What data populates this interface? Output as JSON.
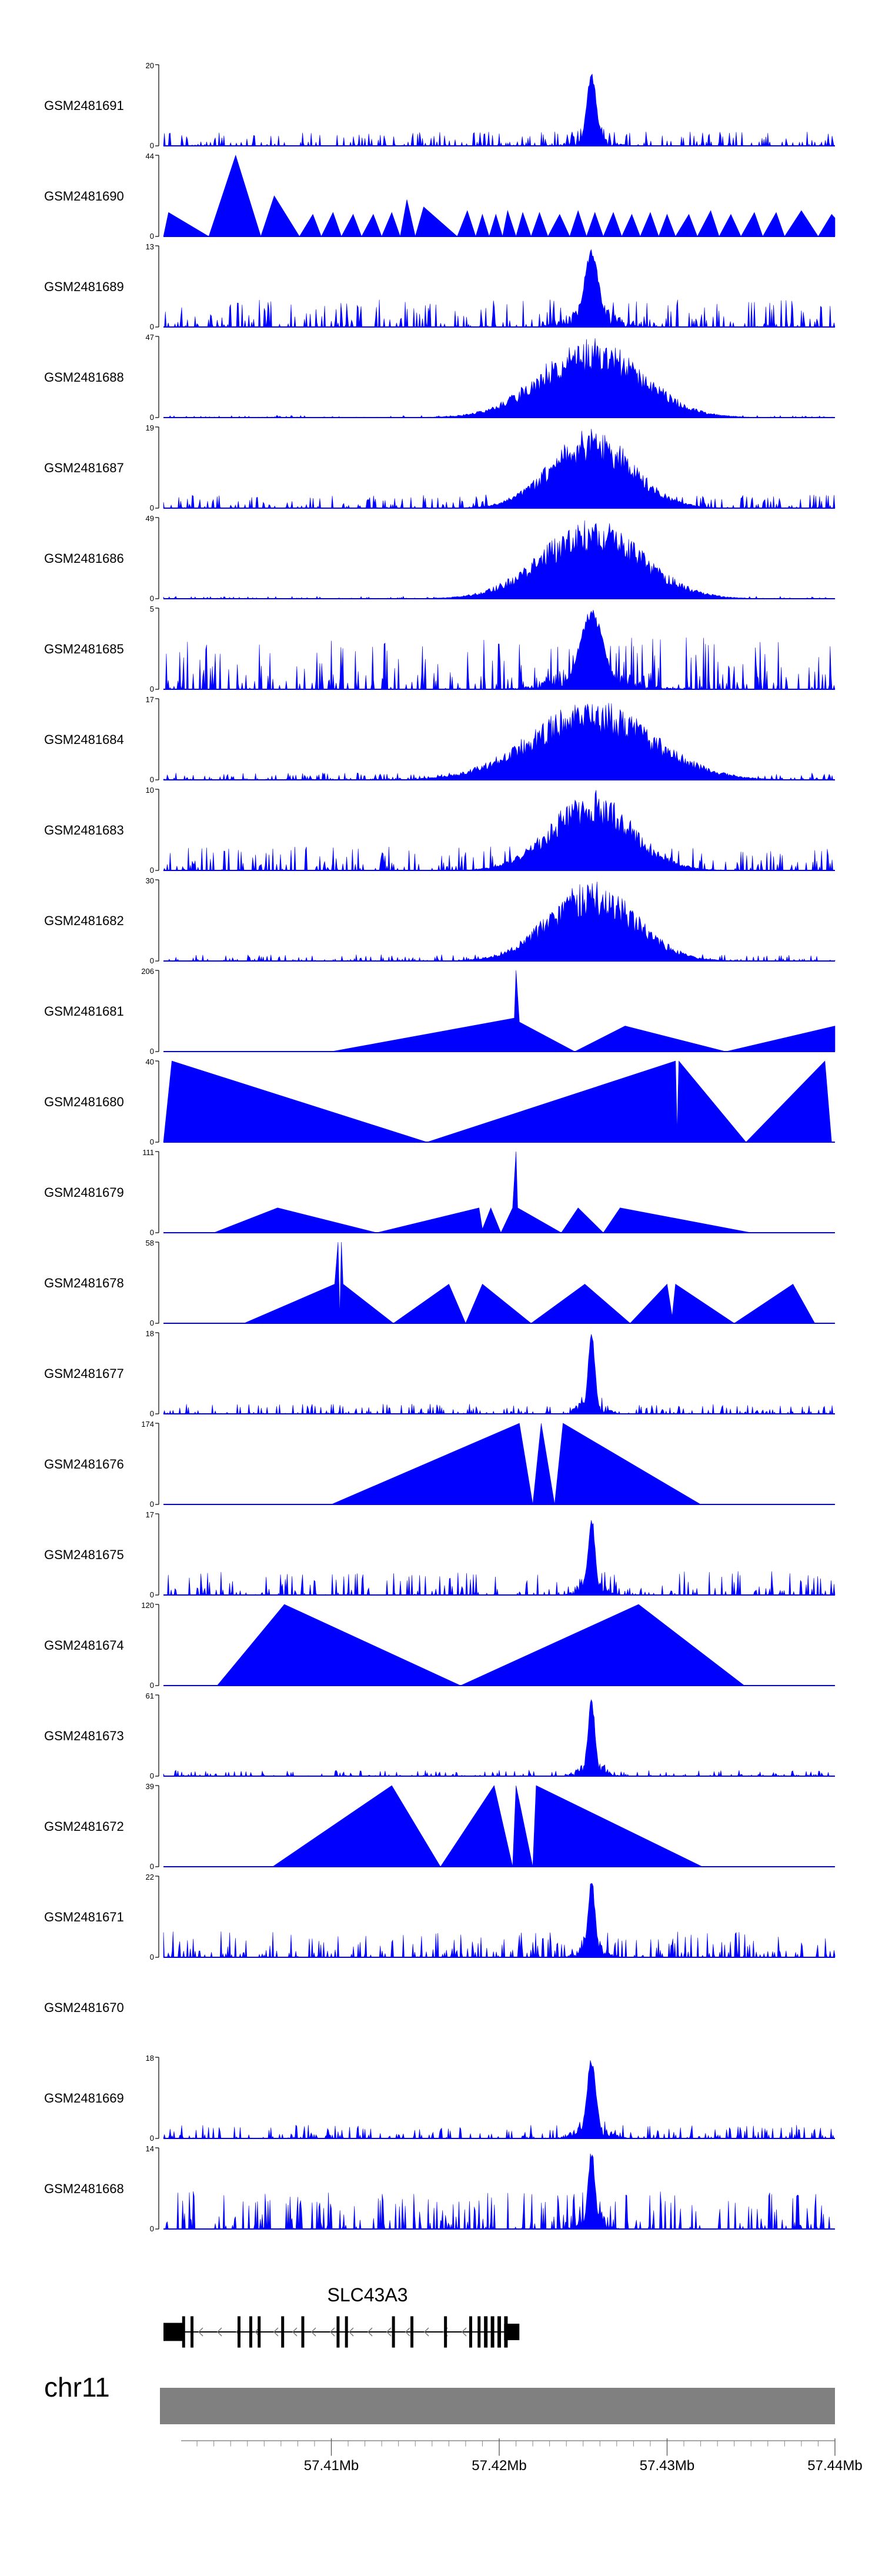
{
  "chart_data": {
    "type": "area",
    "color": "#0000ff",
    "axis_color": "#000000",
    "ideogram_color": "#808080",
    "xlim": [
      57.4,
      57.44
    ],
    "tick_labels": [
      "57.41Mb",
      "57.42Mb",
      "57.43Mb",
      "57.44Mb"
    ],
    "tick_values": [
      57.41,
      57.42,
      57.43,
      57.44
    ],
    "peak_center": 57.4255,
    "chromosome": "chr11",
    "gene": {
      "name": "SLC43A3",
      "start": 57.4,
      "end": 57.4205,
      "strand": "-",
      "exons": [
        57.4,
        57.4012,
        57.4017,
        57.4045,
        57.4052,
        57.4057,
        57.4071,
        57.4083,
        57.4104,
        57.4109,
        57.4137,
        57.4148,
        57.4168,
        57.4183,
        57.4188,
        57.4192,
        57.4196,
        57.42,
        57.4204
      ]
    },
    "tracks": [
      {
        "name": "GSM2481691",
        "ymax": 20,
        "ymin": 0,
        "style": "peak",
        "peak_height": 19,
        "peak_width": 0.0008,
        "noise": 3.5
      },
      {
        "name": "GSM2481690",
        "ymax": 44,
        "ymin": 0,
        "style": "triangles",
        "points": [
          [
            57.4,
            0
          ],
          [
            57.4003,
            13
          ],
          [
            57.4027,
            0
          ],
          [
            57.4043,
            44
          ],
          [
            57.4058,
            0
          ],
          [
            57.4066,
            22
          ],
          [
            57.4081,
            0
          ],
          [
            57.4089,
            12
          ],
          [
            57.4094,
            0
          ],
          [
            57.4101,
            13
          ],
          [
            57.4106,
            0
          ],
          [
            57.4113,
            12
          ],
          [
            57.4118,
            0
          ],
          [
            57.4125,
            12
          ],
          [
            57.413,
            0
          ],
          [
            57.4136,
            13
          ],
          [
            57.4141,
            0
          ],
          [
            57.4145,
            20
          ],
          [
            57.415,
            0
          ],
          [
            57.4155,
            16
          ],
          [
            57.4175,
            0
          ],
          [
            57.4181,
            14
          ],
          [
            57.4186,
            0
          ],
          [
            57.419,
            12
          ],
          [
            57.4194,
            0
          ],
          [
            57.4198,
            12
          ],
          [
            57.4202,
            0
          ],
          [
            57.4205,
            14
          ],
          [
            57.421,
            0
          ],
          [
            57.4214,
            13
          ],
          [
            57.4219,
            0
          ],
          [
            57.4224,
            13
          ],
          [
            57.4229,
            0
          ],
          [
            57.4236,
            12
          ],
          [
            57.4242,
            0
          ],
          [
            57.4247,
            14
          ],
          [
            57.4252,
            0
          ],
          [
            57.4257,
            13
          ],
          [
            57.4262,
            0
          ],
          [
            57.4268,
            13
          ],
          [
            57.4273,
            0
          ],
          [
            57.4279,
            12
          ],
          [
            57.4284,
            0
          ],
          [
            57.429,
            13
          ],
          [
            57.4295,
            0
          ],
          [
            57.43,
            12
          ],
          [
            57.4305,
            0
          ],
          [
            57.4313,
            12
          ],
          [
            57.4318,
            0
          ],
          [
            57.4326,
            14
          ],
          [
            57.4331,
            0
          ],
          [
            57.4338,
            12
          ],
          [
            57.4344,
            0
          ],
          [
            57.4352,
            13
          ],
          [
            57.4357,
            0
          ],
          [
            57.4365,
            13
          ],
          [
            57.437,
            0
          ],
          [
            57.438,
            14
          ],
          [
            57.439,
            0
          ],
          [
            57.4398,
            12
          ],
          [
            57.44,
            10
          ]
        ]
      },
      {
        "name": "GSM2481689",
        "ymax": 13,
        "ymin": 0,
        "style": "peak",
        "peak_height": 13,
        "peak_width": 0.0012,
        "noise": 4.5
      },
      {
        "name": "GSM2481688",
        "ymax": 47,
        "ymin": 0,
        "style": "broad",
        "peak_height": 47,
        "peak_width": 0.003,
        "noise": 1.2
      },
      {
        "name": "GSM2481687",
        "ymax": 19,
        "ymin": 0,
        "style": "broad",
        "peak_height": 19,
        "peak_width": 0.0024,
        "noise": 3.2
      },
      {
        "name": "GSM2481686",
        "ymax": 49,
        "ymin": 0,
        "style": "broad",
        "peak_height": 49,
        "peak_width": 0.003,
        "noise": 1.5
      },
      {
        "name": "GSM2481685",
        "ymax": 5,
        "ymin": 0,
        "style": "peak",
        "peak_height": 5,
        "peak_width": 0.002,
        "noise": 3.2
      },
      {
        "name": "GSM2481684",
        "ymax": 17,
        "ymin": 0,
        "style": "broad",
        "peak_height": 17,
        "peak_width": 0.0036,
        "noise": 1.5
      },
      {
        "name": "GSM2481683",
        "ymax": 10,
        "ymin": 0,
        "style": "broad",
        "peak_height": 10,
        "peak_width": 0.0024,
        "noise": 3.0
      },
      {
        "name": "GSM2481682",
        "ymax": 30,
        "ymin": 0,
        "style": "broad",
        "peak_height": 30,
        "peak_width": 0.0026,
        "noise": 2.5
      },
      {
        "name": "GSM2481681",
        "ymax": 206,
        "ymin": 0,
        "style": "triangles",
        "points": [
          [
            57.41,
            0
          ],
          [
            57.4209,
            85
          ],
          [
            57.421,
            206
          ],
          [
            57.4212,
            75
          ],
          [
            57.4245,
            0
          ],
          [
            57.4275,
            65
          ],
          [
            57.4335,
            0
          ],
          [
            57.44,
            65
          ]
        ]
      },
      {
        "name": "GSM2481680",
        "ymax": 40,
        "ymin": 0,
        "style": "triangles",
        "points": [
          [
            57.4,
            0
          ],
          [
            57.4005,
            40
          ],
          [
            57.4157,
            0
          ],
          [
            57.4305,
            40
          ],
          [
            57.4306,
            5
          ],
          [
            57.4307,
            40
          ],
          [
            57.4347,
            0
          ],
          [
            57.4394,
            40
          ],
          [
            57.4398,
            0
          ]
        ]
      },
      {
        "name": "GSM2481679",
        "ymax": 111,
        "ymin": 0,
        "style": "triangles",
        "points": [
          [
            57.403,
            0
          ],
          [
            57.4068,
            34
          ],
          [
            57.4127,
            0
          ],
          [
            57.4188,
            34
          ],
          [
            57.419,
            5
          ],
          [
            57.4195,
            34
          ],
          [
            57.4201,
            0
          ],
          [
            57.4208,
            34
          ],
          [
            57.421,
            111
          ],
          [
            57.4211,
            34
          ],
          [
            57.4237,
            0
          ],
          [
            57.4247,
            34
          ],
          [
            57.4262,
            0
          ],
          [
            57.4272,
            34
          ],
          [
            57.435,
            0
          ]
        ]
      },
      {
        "name": "GSM2481678",
        "ymax": 58,
        "ymin": 0,
        "style": "triangles",
        "points": [
          [
            57.4048,
            0
          ],
          [
            57.4102,
            28
          ],
          [
            57.4104,
            58
          ],
          [
            57.4105,
            5
          ],
          [
            57.4106,
            58
          ],
          [
            57.4107,
            28
          ],
          [
            57.4137,
            0
          ],
          [
            57.417,
            28
          ],
          [
            57.418,
            0
          ],
          [
            57.419,
            28
          ],
          [
            57.4219,
            0
          ],
          [
            57.4251,
            28
          ],
          [
            57.4278,
            0
          ],
          [
            57.43,
            28
          ],
          [
            57.4303,
            5
          ],
          [
            57.4305,
            28
          ],
          [
            57.434,
            0
          ],
          [
            57.4375,
            28
          ],
          [
            57.4388,
            0
          ]
        ]
      },
      {
        "name": "GSM2481677",
        "ymax": 18,
        "ymin": 0,
        "style": "peak",
        "peak_height": 18,
        "peak_width": 0.0006,
        "noise": 2.2
      },
      {
        "name": "GSM2481676",
        "ymax": 174,
        "ymin": 0,
        "style": "triangles",
        "points": [
          [
            57.41,
            0
          ],
          [
            57.4212,
            174
          ],
          [
            57.422,
            0
          ],
          [
            57.4225,
            174
          ],
          [
            57.4233,
            0
          ],
          [
            57.4238,
            174
          ],
          [
            57.432,
            0
          ]
        ]
      },
      {
        "name": "GSM2481675",
        "ymax": 17,
        "ymin": 0,
        "style": "peak",
        "peak_height": 17,
        "peak_width": 0.0006,
        "noise": 5.0
      },
      {
        "name": "GSM2481674",
        "ymax": 120,
        "ymin": 0,
        "style": "triangles",
        "points": [
          [
            57.4032,
            0
          ],
          [
            57.4072,
            120
          ],
          [
            57.4177,
            0
          ],
          [
            57.4283,
            120
          ],
          [
            57.4346,
            0
          ]
        ]
      },
      {
        "name": "GSM2481673",
        "ymax": 61,
        "ymin": 0,
        "style": "peak",
        "peak_height": 61,
        "peak_width": 0.0006,
        "noise": 4.5
      },
      {
        "name": "GSM2481672",
        "ymax": 39,
        "ymin": 0,
        "style": "triangles",
        "points": [
          [
            57.4065,
            0
          ],
          [
            57.4136,
            39
          ],
          [
            57.4165,
            0
          ],
          [
            57.4197,
            39
          ],
          [
            57.4208,
            0
          ],
          [
            57.421,
            39
          ],
          [
            57.422,
            0
          ],
          [
            57.4222,
            39
          ],
          [
            57.4321,
            0
          ]
        ]
      },
      {
        "name": "GSM2481671",
        "ymax": 22,
        "ymin": 0,
        "style": "peak",
        "peak_height": 22,
        "peak_width": 0.0006,
        "noise": 7.0
      },
      {
        "name": "GSM2481670",
        "ymax": null,
        "ymin": null,
        "style": "empty"
      },
      {
        "name": "GSM2481669",
        "ymax": 18,
        "ymin": 0,
        "style": "peak",
        "peak_height": 18,
        "peak_width": 0.0008,
        "noise": 3.0
      },
      {
        "name": "GSM2481668",
        "ymax": 14,
        "ymin": 0,
        "style": "peak",
        "peak_height": 14,
        "peak_width": 0.0006,
        "noise": 6.5
      }
    ]
  }
}
